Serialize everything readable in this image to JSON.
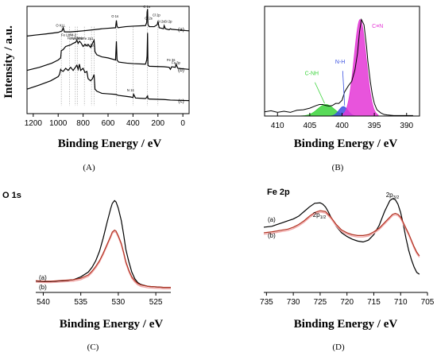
{
  "chart_data": [
    {
      "panel": "A",
      "type": "line",
      "xlabel": "Binding Energy / eV",
      "ylabel": "Intensity / a.u.",
      "xlim": [
        1250,
        -50
      ],
      "ylim": [
        0,
        10
      ],
      "xticks": [
        1200,
        1000,
        800,
        600,
        400,
        200,
        0
      ],
      "series": [
        {
          "name": "(a)",
          "label_y": 7.8,
          "x": [
            1250,
            1180,
            1100,
            1000,
            968,
            960,
            950,
            900,
            850,
            800,
            720,
            650,
            600,
            540,
            533,
            528,
            520,
            460,
            400,
            300,
            290,
            287,
            283,
            280,
            270,
            230,
            205,
            200,
            190,
            155,
            150,
            140,
            110,
            100,
            90,
            0,
            -50
          ],
          "y": [
            7.3,
            7.4,
            7.5,
            7.65,
            7.8,
            8.1,
            7.7,
            7.7,
            7.75,
            7.8,
            7.9,
            8.0,
            8.05,
            8.1,
            8.8,
            8.25,
            8.1,
            8.2,
            8.25,
            8.3,
            8.6,
            9.6,
            9.9,
            8.4,
            8.2,
            8.2,
            8.4,
            8.7,
            8.1,
            8.0,
            8.3,
            8.0,
            7.9,
            8.0,
            7.95,
            7.85,
            7.8
          ]
        },
        {
          "name": "(b)",
          "label_y": 3.9,
          "x": [
            1250,
            1150,
            1050,
            1000,
            980,
            975,
            960,
            940,
            900,
            880,
            860,
            850,
            840,
            830,
            820,
            800,
            785,
            770,
            760,
            740,
            725,
            712,
            705,
            690,
            650,
            600,
            540,
            533,
            528,
            515,
            450,
            400,
            300,
            290,
            287,
            283,
            280,
            270,
            150,
            110,
            100,
            90,
            60,
            55,
            40,
            -50
          ],
          "y": [
            4.0,
            4.3,
            4.7,
            5.0,
            5.2,
            5.9,
            6.0,
            6.3,
            6.45,
            6.6,
            6.7,
            6.9,
            6.6,
            6.8,
            6.7,
            6.3,
            6.5,
            6.35,
            6.5,
            6.2,
            6.6,
            6.9,
            5.8,
            5.5,
            5.3,
            5.2,
            5.0,
            6.8,
            5.0,
            4.8,
            4.7,
            4.65,
            4.6,
            5.0,
            5.4,
            7.6,
            4.5,
            4.4,
            4.35,
            4.3,
            4.1,
            4.35,
            4.3,
            4.6,
            4.2,
            4.1
          ]
        },
        {
          "name": "(c)",
          "label_y": 0.9,
          "x": [
            1250,
            1150,
            1060,
            1000,
            990,
            980,
            975,
            960,
            940,
            920,
            900,
            880,
            850,
            840,
            830,
            820,
            800,
            785,
            770,
            760,
            740,
            725,
            712,
            705,
            690,
            650,
            600,
            540,
            533,
            528,
            515,
            450,
            420,
            400,
            395,
            380,
            300,
            290,
            287,
            283,
            280,
            270,
            150,
            100,
            -50
          ],
          "y": [
            2.2,
            2.6,
            3.0,
            3.4,
            3.6,
            4.1,
            4.0,
            3.9,
            4.2,
            4.0,
            4.3,
            4.0,
            4.5,
            4.1,
            4.6,
            4.0,
            4.2,
            3.8,
            3.9,
            3.2,
            3.0,
            3.2,
            3.6,
            2.2,
            2.0,
            1.8,
            1.75,
            1.7,
            1.68,
            1.65,
            1.6,
            1.5,
            1.45,
            1.4,
            1.7,
            1.35,
            1.3,
            1.4,
            1.5,
            1.55,
            1.3,
            1.25,
            1.2,
            1.15,
            1.1
          ]
        }
      ],
      "annotations": [
        {
          "text": "O KLL",
          "x": 980,
          "y": 8.2
        },
        {
          "text": "Fe LMM-2",
          "x": 915,
          "y": 7.3
        },
        {
          "text": "Fe LMM-1",
          "x": 865,
          "y": 7.0
        },
        {
          "text": "Fe LMM",
          "x": 850,
          "y": 6.95
        },
        {
          "text": "Fe 2p1",
          "x": 760,
          "y": 6.95
        },
        {
          "text": "Fe 2p3",
          "x": 745,
          "y": 6.3
        },
        {
          "text": "O 1s",
          "x": 545,
          "y": 9.1
        },
        {
          "text": "C 1s",
          "x": 290,
          "y": 10.0
        },
        {
          "text": "Cl 2p",
          "x": 212,
          "y": 9.2
        },
        {
          "text": "Cl 2s",
          "x": 275,
          "y": 8.9
        },
        {
          "text": "Si 2s",
          "x": 175,
          "y": 8.6
        },
        {
          "text": "Si 2p",
          "x": 118,
          "y": 8.6
        },
        {
          "text": "N 1s",
          "x": 420,
          "y": 2.0
        },
        {
          "text": "Fe 3s",
          "x": 95,
          "y": 4.9
        },
        {
          "text": "Fe 3p",
          "x": 55,
          "y": 4.6
        }
      ],
      "caption": "(A)"
    },
    {
      "panel": "B",
      "type": "line",
      "xlabel": "Binding Energy / eV",
      "xlim": [
        412,
        388
      ],
      "xticks": [
        410,
        405,
        400,
        395,
        390
      ],
      "ylim": [
        0,
        10
      ],
      "series": [
        {
          "name": "raw",
          "x": [
            412,
            411,
            410,
            409,
            408,
            407.5,
            407,
            406,
            405,
            404,
            403.5,
            403,
            402.5,
            402,
            401.5,
            401,
            400.5,
            400,
            399.6,
            399,
            398.5,
            398,
            397.6,
            397.3,
            397,
            396.6,
            396.2,
            396,
            395.6,
            395.3,
            395,
            394.6,
            394,
            393.5,
            393,
            392,
            391,
            390,
            389
          ],
          "y": [
            0.4,
            0.5,
            0.35,
            0.45,
            0.35,
            0.45,
            0.55,
            0.6,
            0.75,
            1.0,
            1.1,
            1.1,
            1.0,
            0.95,
            1.0,
            1.2,
            1.2,
            1.5,
            2.3,
            2.9,
            3.3,
            4.4,
            6.0,
            8.0,
            9.2,
            8.7,
            6.6,
            5.2,
            3.2,
            2.0,
            1.2,
            0.6,
            0.3,
            0.15,
            0.1,
            0.05,
            0.05,
            0.05,
            0.05
          ]
        }
      ],
      "peaks": [
        {
          "name": "C-NH",
          "center": 402.5,
          "fwhm": 3.0,
          "height": 1.1,
          "color": "#3bd43b"
        },
        {
          "name": "N-H",
          "center": 399.8,
          "fwhm": 1.6,
          "height": 0.9,
          "color": "#3a50e0"
        },
        {
          "name": "C≡N",
          "center": 397.2,
          "fwhm": 2.2,
          "height": 9.2,
          "color": "#e436d6"
        }
      ],
      "caption": "(B)"
    },
    {
      "panel": "C",
      "type": "line",
      "title": "O 1s",
      "xlabel": "Binding Energy / eV",
      "xlim": [
        541,
        523
      ],
      "xticks": [
        540,
        535,
        530,
        525
      ],
      "ylim": [
        0,
        10
      ],
      "series": [
        {
          "name": "(a)",
          "color": "#000000",
          "x": [
            541,
            540,
            539,
            538,
            537,
            536,
            535,
            534,
            533.5,
            533,
            532.5,
            532,
            531.5,
            531,
            530.8,
            530.5,
            530.3,
            530,
            529.6,
            529.3,
            529,
            528.6,
            528.2,
            527.8,
            527.4,
            527,
            526,
            525,
            524,
            523
          ],
          "y": [
            0.85,
            0.8,
            0.8,
            0.85,
            0.9,
            1.0,
            1.3,
            1.8,
            2.3,
            3.0,
            4.0,
            5.4,
            7.0,
            8.5,
            9.0,
            9.3,
            9.15,
            8.5,
            7.2,
            5.8,
            4.2,
            2.9,
            1.8,
            1.1,
            0.7,
            0.5,
            0.3,
            0.25,
            0.2,
            0.2
          ]
        },
        {
          "name": "(b)",
          "color": "#b03020",
          "x": [
            541,
            540,
            539,
            538,
            537,
            536,
            535,
            534,
            533.5,
            533,
            532.5,
            532,
            531.5,
            531,
            530.8,
            530.5,
            530.3,
            530,
            529.6,
            529.3,
            529,
            528.6,
            528.2,
            527.8,
            527.4,
            527,
            526,
            525,
            524,
            523
          ],
          "y": [
            0.9,
            0.85,
            0.85,
            0.9,
            0.95,
            1.0,
            1.15,
            1.5,
            1.9,
            2.4,
            3.0,
            3.8,
            4.7,
            5.6,
            6.0,
            6.2,
            6.1,
            5.6,
            4.8,
            3.9,
            2.9,
            2.0,
            1.3,
            0.9,
            0.6,
            0.45,
            0.3,
            0.25,
            0.2,
            0.2
          ]
        }
      ],
      "caption": "(C)"
    },
    {
      "panel": "D",
      "type": "line",
      "title": "Fe 2p",
      "xlabel": "Binding Energy / eV",
      "xlim": [
        735.5,
        705
      ],
      "xticks": [
        735,
        730,
        725,
        720,
        715,
        710,
        705
      ],
      "ylim": [
        0,
        10
      ],
      "series": [
        {
          "name": "(a)",
          "color": "#000000",
          "x": [
            735.5,
            734,
            733,
            732,
            731,
            730,
            729,
            728,
            727,
            726,
            725,
            724.5,
            724,
            723.5,
            723,
            722,
            721,
            720,
            719,
            718,
            717,
            716,
            715,
            714,
            713,
            712,
            711.5,
            711,
            710.5,
            710,
            709.5,
            709,
            708.5,
            708,
            707.5,
            707,
            706.5
          ],
          "y": [
            6.9,
            7.0,
            7.2,
            7.4,
            7.6,
            7.8,
            8.1,
            8.6,
            9.1,
            9.5,
            9.55,
            9.4,
            9.1,
            8.6,
            8.0,
            7.0,
            6.3,
            5.9,
            5.6,
            5.4,
            5.3,
            5.5,
            6.1,
            7.1,
            8.6,
            9.8,
            10.0,
            9.9,
            9.4,
            8.5,
            7.2,
            5.7,
            4.4,
            3.4,
            2.6,
            2.0,
            1.8
          ]
        },
        {
          "name": "(b)",
          "color": "#b03020",
          "x": [
            735.5,
            734,
            733,
            732,
            731,
            730,
            729,
            728,
            727,
            726,
            725,
            724,
            723,
            722,
            721,
            720,
            719,
            718,
            717,
            716,
            715,
            714,
            713,
            712,
            711.5,
            711,
            710.5,
            710,
            709.5,
            709,
            708.5,
            708,
            707.5,
            707,
            706.5
          ],
          "y": [
            6.3,
            6.4,
            6.5,
            6.6,
            6.7,
            6.9,
            7.2,
            7.6,
            8.1,
            8.5,
            8.7,
            8.6,
            8.0,
            7.2,
            6.6,
            6.3,
            6.1,
            6.0,
            6.0,
            6.1,
            6.4,
            6.8,
            7.4,
            8.0,
            8.3,
            8.4,
            8.3,
            8.0,
            7.4,
            6.8,
            6.2,
            5.5,
            4.8,
            4.2,
            3.8
          ]
        }
      ],
      "peaks": [
        {
          "text": "2p1/2",
          "x": 725.5
        },
        {
          "text": "2p3/2",
          "x": 711.2
        }
      ],
      "caption": "(D)"
    }
  ],
  "labels": {
    "A": {
      "ylabel": "Intensity / a.u.",
      "xlabel": "Binding Energy / eV",
      "caption": "(A)",
      "series": [
        "(a)",
        "(b)",
        "(c)"
      ]
    },
    "B": {
      "xlabel": "Binding Energy / eV",
      "caption": "(B)",
      "peaks": [
        "C-NH",
        "N-H",
        "C≡N"
      ]
    },
    "C": {
      "title": "O 1s",
      "xlabel": "Binding Energy / eV",
      "caption": "(C)",
      "series": [
        "(a)",
        "(b)"
      ]
    },
    "D": {
      "title": "Fe 2p",
      "xlabel": "Binding Energy / eV",
      "caption": "(D)",
      "series": [
        "(a)",
        "(b)"
      ],
      "peak1": {
        "main": "2p",
        "sub": "1/2"
      },
      "peak2": {
        "main": "2p",
        "sub": "3/2"
      }
    }
  },
  "colors": {
    "black": "#000000",
    "red_brown": "#b03020",
    "green": "#3bd43b",
    "blue": "#3a50e0",
    "magenta": "#e436d6",
    "shadow": "#f2a8a8"
  }
}
